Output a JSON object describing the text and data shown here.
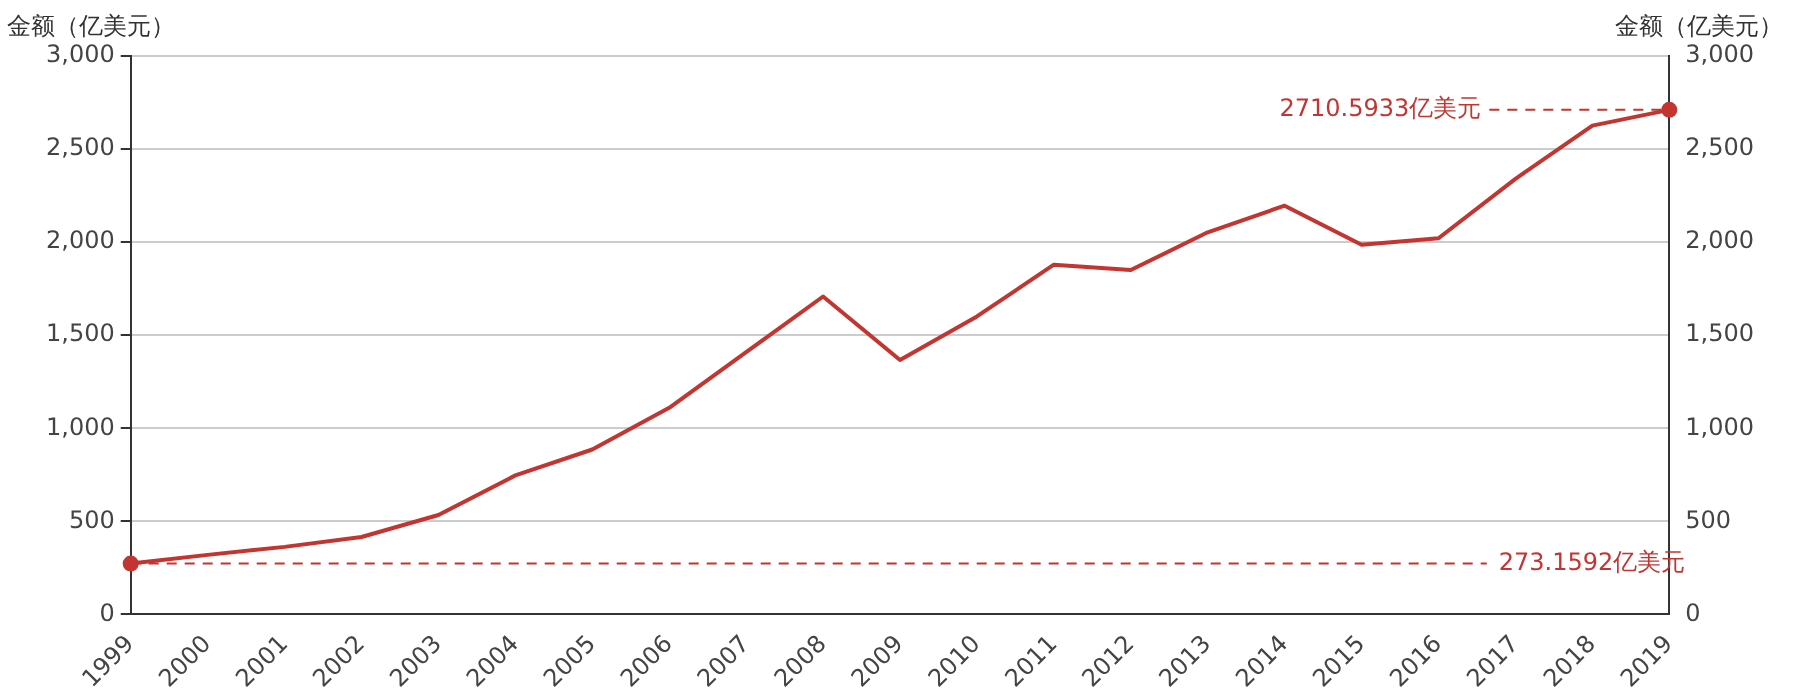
{
  "chart_data": {
    "type": "line",
    "ylabel": "金额（亿美元）",
    "y2label": "金额（亿美元）",
    "categories": [
      "1999",
      "2000",
      "2001",
      "2002",
      "2003",
      "2004",
      "2005",
      "2006",
      "2007",
      "2008",
      "2009",
      "2010",
      "2011",
      "2012",
      "2013",
      "2014",
      "2015",
      "2016",
      "2017",
      "2018",
      "2019"
    ],
    "series": [
      {
        "color": "#c23531",
        "values": [
          273.1592,
          320,
          363,
          416,
          534,
          747,
          886,
          1110,
          1409,
          1708,
          1367,
          1601,
          1879,
          1850,
          2053,
          2196,
          1986,
          2021,
          2340,
          2626,
          2710.5933
        ]
      }
    ],
    "ylim": [
      0,
      3000
    ],
    "yticks": [
      0,
      500,
      {
        "value": 1000,
        "label": "1,000"
      },
      {
        "value": 1500,
        "label": "1,500"
      },
      {
        "value": 2000,
        "label": "2,000"
      },
      {
        "value": 2500,
        "label": "2,500"
      },
      {
        "value": 3000,
        "label": "3,000"
      }
    ],
    "y2lim": [
      0,
      3000
    ],
    "y2ticks": [
      0,
      500,
      {
        "value": 1000,
        "label": "1,000"
      },
      {
        "value": 1500,
        "label": "1,500"
      },
      {
        "value": 2000,
        "label": "2,000"
      },
      {
        "value": 2500,
        "label": "2,500"
      },
      {
        "value": 3000,
        "label": "3,000"
      }
    ],
    "ref_lines": [
      {
        "axis": "y",
        "value": 273.1592,
        "label": "273.1592亿美元",
        "color": "#c23531",
        "line_style": "dashed"
      },
      {
        "axis": "y",
        "value": 2710.5933,
        "label": "2710.5933亿美元",
        "color": "#c23531",
        "line_style": "dashed"
      }
    ],
    "grid": "y",
    "legend": false,
    "marker": "none",
    "line_style": "solid"
  }
}
